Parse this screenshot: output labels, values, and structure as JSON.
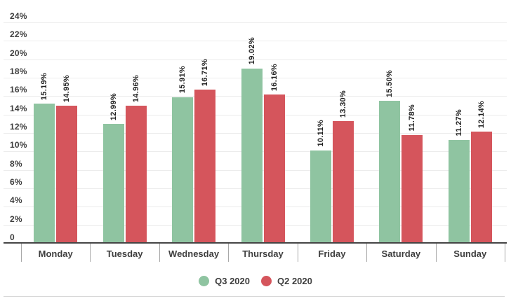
{
  "chart_data": {
    "type": "bar",
    "title": "",
    "categories": [
      "Monday",
      "Tuesday",
      "Wednesday",
      "Thursday",
      "Friday",
      "Saturday",
      "Sunday"
    ],
    "series": [
      {
        "name": "Q3 2020",
        "color": "#8FC4A1",
        "values": [
          15.19,
          12.99,
          15.91,
          19.02,
          10.11,
          15.5,
          11.27
        ]
      },
      {
        "name": "Q2 2020",
        "color": "#D5555C",
        "values": [
          14.95,
          14.96,
          16.71,
          16.16,
          13.3,
          11.78,
          12.14
        ]
      }
    ],
    "data_label_format": "{value}%",
    "data_label_rotation": "vertical",
    "xlabel": "",
    "ylabel": "",
    "ylim": [
      0,
      24
    ],
    "y_tick_step": 2,
    "y_tick_labels": [
      "0",
      "2%",
      "4%",
      "6%",
      "8%",
      "10%",
      "12%",
      "14%",
      "16%",
      "18%",
      "20%",
      "22%",
      "24%"
    ],
    "grid": true,
    "legend_position": "bottom"
  }
}
